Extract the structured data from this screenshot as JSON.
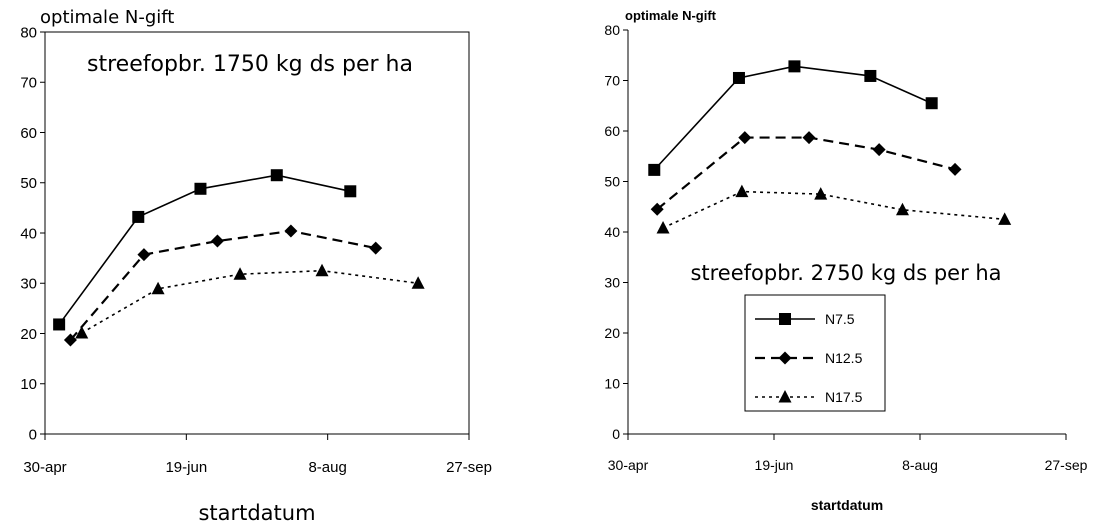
{
  "chart_data": [
    {
      "type": "line",
      "title": "",
      "annotation": "streefopbr. 1750 kg ds per ha",
      "ylabel": "optimale N-gift",
      "xlabel": "startdatum",
      "ylim": [
        0,
        80
      ],
      "yticks": [
        "0",
        "10",
        "20",
        "30",
        "40",
        "50",
        "60",
        "70",
        "80"
      ],
      "xtick_labels": [
        "30-apr",
        "19-jun",
        "8-aug",
        "27-sep"
      ],
      "xtick_dates": [
        "2000-04-30",
        "2000-06-19",
        "2000-08-08",
        "2000-09-27"
      ],
      "legend": "none",
      "series": [
        {
          "marker": "square",
          "dash": "solid",
          "points": [
            [
              "2000-05-05",
              21.8
            ],
            [
              "2000-06-02",
              43.2
            ],
            [
              "2000-06-24",
              48.8
            ],
            [
              "2000-07-21",
              51.5
            ],
            [
              "2000-08-16",
              48.3
            ]
          ]
        },
        {
          "marker": "diamond",
          "dash": "dashed",
          "points": [
            [
              "2000-05-09",
              18.7
            ],
            [
              "2000-06-04",
              35.7
            ],
            [
              "2000-06-30",
              38.4
            ],
            [
              "2000-07-26",
              40.4
            ],
            [
              "2000-08-25",
              37.0
            ]
          ]
        },
        {
          "marker": "triangle",
          "dash": "dotted",
          "points": [
            [
              "2000-05-13",
              20.1
            ],
            [
              "2000-06-09",
              28.9
            ],
            [
              "2000-07-08",
              31.8
            ],
            [
              "2000-08-06",
              32.5
            ],
            [
              "2000-09-09",
              30.0
            ]
          ]
        }
      ]
    },
    {
      "type": "line",
      "title": "",
      "annotation": "streefopbr. 2750 kg ds per ha",
      "ylabel": "optimale N-gift",
      "xlabel": "startdatum",
      "ylim": [
        0,
        80
      ],
      "yticks": [
        "0",
        "10",
        "20",
        "30",
        "40",
        "50",
        "60",
        "70",
        "80"
      ],
      "xtick_labels": [
        "30-apr",
        "19-jun",
        "8-aug",
        "27-sep"
      ],
      "xtick_dates": [
        "2000-04-30",
        "2000-06-19",
        "2000-08-08",
        "2000-09-27"
      ],
      "legend": "bottom-center",
      "series": [
        {
          "name": "N7.5",
          "marker": "square",
          "dash": "solid",
          "points": [
            [
              "2000-05-09",
              52.3
            ],
            [
              "2000-06-07",
              70.5
            ],
            [
              "2000-06-26",
              72.8
            ],
            [
              "2000-07-22",
              70.9
            ],
            [
              "2000-08-12",
              65.5
            ]
          ]
        },
        {
          "name": "N12.5",
          "marker": "diamond",
          "dash": "dashed",
          "points": [
            [
              "2000-05-10",
              44.5
            ],
            [
              "2000-06-09",
              58.7
            ],
            [
              "2000-07-01",
              58.7
            ],
            [
              "2000-07-25",
              56.3
            ],
            [
              "2000-08-20",
              52.4
            ]
          ]
        },
        {
          "name": "N17.5",
          "marker": "triangle",
          "dash": "dotted",
          "points": [
            [
              "2000-05-12",
              40.8
            ],
            [
              "2000-06-08",
              48.0
            ],
            [
              "2000-07-05",
              47.5
            ],
            [
              "2000-08-02",
              44.4
            ],
            [
              "2000-09-06",
              42.5
            ]
          ]
        }
      ]
    }
  ]
}
